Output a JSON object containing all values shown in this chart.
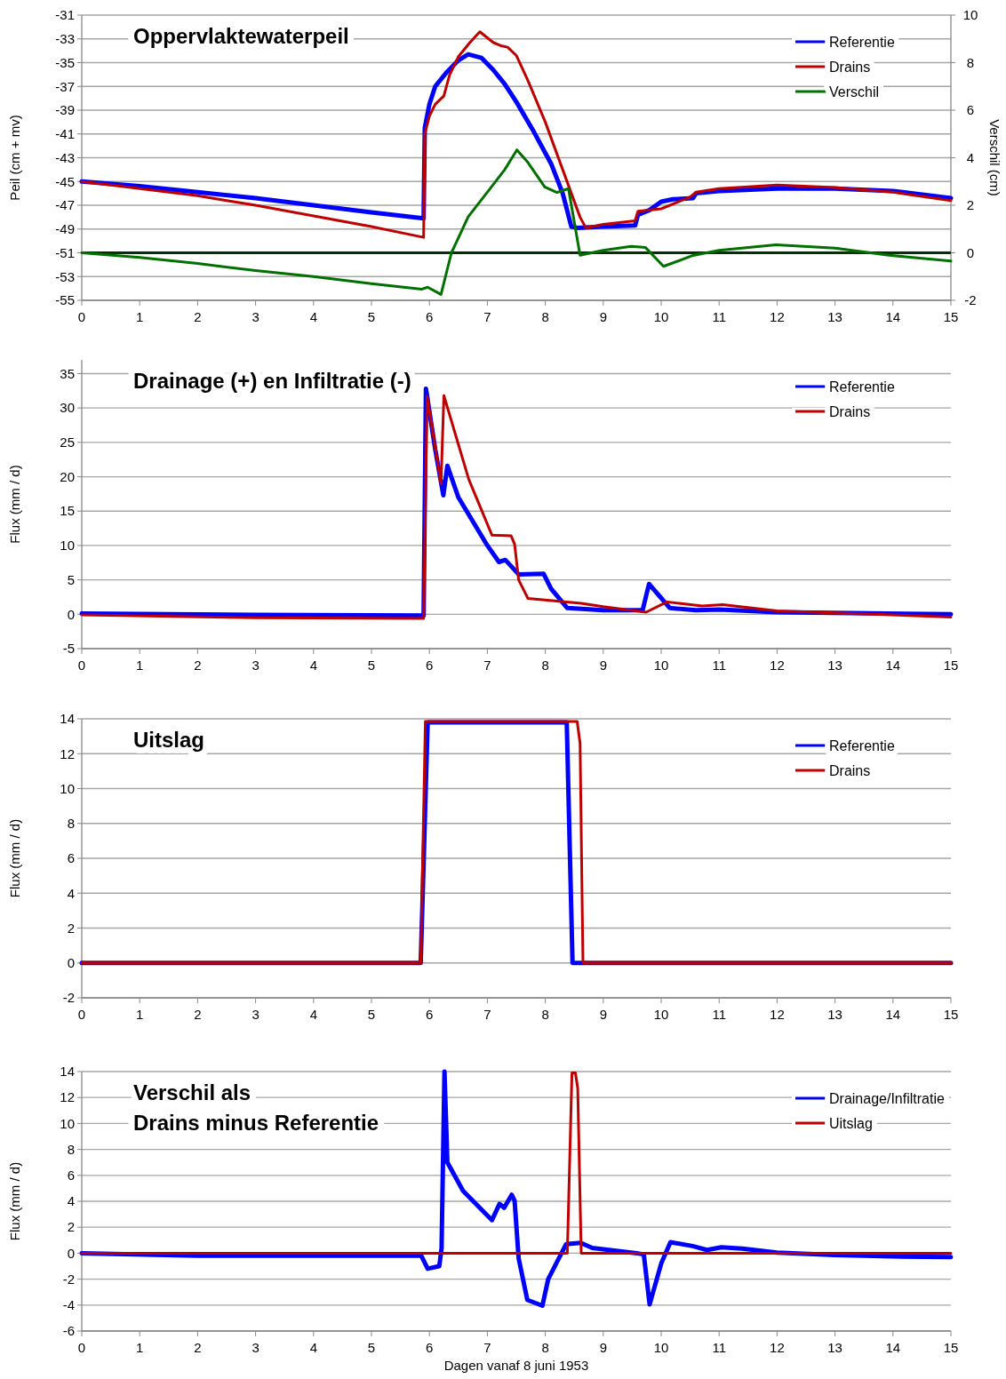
{
  "chart_data": [
    {
      "type": "line",
      "title": "Oppervlaktewaterpeil",
      "ylabel": "Peil (cm + mv)",
      "y2label": "Verschil (cm)",
      "xlim": [
        0,
        15
      ],
      "xticks": [
        0,
        1,
        2,
        3,
        4,
        5,
        6,
        7,
        8,
        9,
        10,
        11,
        12,
        13,
        14,
        15
      ],
      "ylim": [
        -55,
        -31
      ],
      "yticks": [
        -55,
        -53,
        -51,
        -49,
        -47,
        -45,
        -43,
        -41,
        -39,
        -37,
        -35,
        -33,
        -31
      ],
      "y2lim": [
        -2,
        10
      ],
      "y2ticks": [
        -2,
        0,
        2,
        4,
        6,
        8,
        10
      ],
      "grid": "y",
      "legend": "top right",
      "ref_lines": [
        {
          "axis": "y2",
          "value": 0,
          "color": "#003300"
        }
      ],
      "series": [
        {
          "name": "Referentie",
          "color": "#0000ff",
          "x": [
            0,
            1,
            2,
            3,
            4,
            5,
            5.9,
            5.92,
            6,
            6.1,
            6.3,
            6.5,
            6.67,
            6.9,
            7.1,
            7.3,
            7.5,
            7.8,
            8.1,
            8.3,
            8.45,
            8.55,
            9,
            9.55,
            9.6,
            9.8,
            10,
            10.2,
            10.55,
            10.6,
            11,
            12,
            13,
            14,
            15
          ],
          "values": [
            -45,
            -45.4,
            -45.9,
            -46.4,
            -47,
            -47.6,
            -48.1,
            -40.5,
            -38.5,
            -37,
            -35.8,
            -34.8,
            -34.3,
            -34.6,
            -35.6,
            -36.8,
            -38.3,
            -40.8,
            -43.5,
            -46,
            -48.8,
            -48.9,
            -48.8,
            -48.7,
            -47.8,
            -47.4,
            -46.7,
            -46.5,
            -46.4,
            -46,
            -45.8,
            -45.6,
            -45.6,
            -45.8,
            -46.4
          ]
        },
        {
          "name": "Drains",
          "color": "#c00000",
          "x": [
            0,
            1,
            2,
            2.5,
            3,
            4,
            5,
            5.9,
            5.92,
            6,
            6.1,
            6.25,
            6.35,
            6.5,
            6.7,
            6.87,
            7.1,
            7.25,
            7.35,
            7.5,
            7.7,
            8,
            8.3,
            8.6,
            8.7,
            9,
            9.55,
            9.6,
            10,
            10.5,
            10.6,
            11,
            12,
            13,
            14,
            15
          ],
          "values": [
            -45,
            -45.6,
            -46.2,
            -46.6,
            -47,
            -47.9,
            -48.8,
            -49.7,
            -41,
            -39.5,
            -38.5,
            -37.8,
            -36,
            -34.5,
            -33.3,
            -32.4,
            -33.3,
            -33.6,
            -33.7,
            -34.4,
            -36.5,
            -40,
            -44,
            -48,
            -48.9,
            -48.6,
            -48.3,
            -47.5,
            -47.3,
            -46.3,
            -45.9,
            -45.6,
            -45.3,
            -45.5,
            -45.9,
            -46.6
          ]
        },
        {
          "name": "Verschil",
          "color": "#007000",
          "axis": "y2",
          "x": [
            0,
            1,
            2,
            3,
            4,
            5,
            5.87,
            5.97,
            6.2,
            6.38,
            6.67,
            7.07,
            7.3,
            7.51,
            7.7,
            7.99,
            8.2,
            8.4,
            8.6,
            9,
            9.48,
            9.73,
            10.04,
            10.55,
            11,
            11.98,
            13,
            13.93,
            15
          ],
          "values": [
            0,
            -0.2,
            -0.45,
            -0.75,
            -1,
            -1.3,
            -1.53,
            -1.45,
            -1.75,
            0,
            1.52,
            2.77,
            3.5,
            4.33,
            3.8,
            2.77,
            2.54,
            2.7,
            -0.1,
            0.1,
            0.27,
            0.22,
            -0.57,
            -0.11,
            0.1,
            0.34,
            0.2,
            -0.1,
            -0.35
          ]
        }
      ]
    },
    {
      "type": "line",
      "title": "Drainage (+) en Infiltratie (-)",
      "ylabel": "Flux (mm / d)",
      "xlim": [
        0,
        15
      ],
      "xticks": [
        0,
        1,
        2,
        3,
        4,
        5,
        6,
        7,
        8,
        9,
        10,
        11,
        12,
        13,
        14,
        15
      ],
      "ylim": [
        -5,
        37
      ],
      "yticks": [
        -5,
        0,
        5,
        10,
        15,
        20,
        25,
        30,
        35
      ],
      "grid": "y",
      "legend": "top right",
      "series": [
        {
          "name": "Referentie",
          "color": "#0000ff",
          "x": [
            0,
            3,
            5.9,
            5.94,
            6.1,
            6.24,
            6.31,
            6.5,
            7,
            7.2,
            7.31,
            7.54,
            7.97,
            8.1,
            8.38,
            9,
            9.68,
            9.79,
            10.15,
            10.6,
            11,
            12,
            15
          ],
          "values": [
            0.1,
            -0.1,
            -0.2,
            32.8,
            24,
            17.3,
            21.6,
            17,
            10,
            7.6,
            7.9,
            5.8,
            5.9,
            3.7,
            0.9,
            0.6,
            0.6,
            4.4,
            0.9,
            0.6,
            0.7,
            0.3,
            0
          ]
        },
        {
          "name": "Drains",
          "color": "#c00000",
          "x": [
            0,
            3,
            5.9,
            5.96,
            6.2,
            6.25,
            6.68,
            7.08,
            7.41,
            7.47,
            7.54,
            7.7,
            8.62,
            9,
            9.74,
            10.1,
            10.71,
            11.06,
            12,
            15
          ],
          "values": [
            -0.1,
            -0.5,
            -0.6,
            31.7,
            19,
            31.8,
            19.6,
            11.5,
            11.4,
            10.2,
            5,
            2.3,
            1.6,
            1.1,
            0.3,
            1.8,
            1.2,
            1.4,
            0.5,
            -0.4
          ]
        }
      ]
    },
    {
      "type": "line",
      "title": "Uitslag",
      "ylabel": "Flux (mm / d)",
      "xlim": [
        0,
        15
      ],
      "xticks": [
        0,
        1,
        2,
        3,
        4,
        5,
        6,
        7,
        8,
        9,
        10,
        11,
        12,
        13,
        14,
        15
      ],
      "ylim": [
        -2,
        14
      ],
      "yticks": [
        -2,
        0,
        2,
        4,
        6,
        8,
        10,
        12,
        14
      ],
      "grid": "y",
      "legend": "top right",
      "series": [
        {
          "name": "Referentie",
          "color": "#0000ff",
          "x": [
            0,
            5.85,
            5.97,
            8.37,
            8.47,
            15
          ],
          "values": [
            0,
            0,
            13.8,
            13.8,
            0,
            0
          ]
        },
        {
          "name": "Drains",
          "color": "#c00000",
          "x": [
            0,
            5.85,
            5.93,
            8.55,
            8.6,
            8.65,
            15
          ],
          "values": [
            0,
            0,
            13.85,
            13.85,
            12.6,
            0,
            0
          ]
        }
      ]
    },
    {
      "type": "line",
      "title": "Verschil als\nDrains minus Referentie",
      "ylabel": "Flux (mm / d)",
      "xlabel": "Dagen vanaf 8 juni 1953",
      "xlim": [
        0,
        15
      ],
      "xticks": [
        0,
        1,
        2,
        3,
        4,
        5,
        6,
        7,
        8,
        9,
        10,
        11,
        12,
        13,
        14,
        15
      ],
      "ylim": [
        -6,
        14
      ],
      "yticks": [
        -6,
        -4,
        -2,
        0,
        2,
        4,
        6,
        8,
        10,
        12,
        14
      ],
      "grid": "y",
      "legend": "top right",
      "series": [
        {
          "name": "Drainage/Infiltratie",
          "color": "#0000ff",
          "x": [
            0,
            2,
            5.86,
            5.97,
            6.17,
            6.21,
            6.26,
            6.31,
            6.58,
            7.08,
            7.21,
            7.29,
            7.42,
            7.47,
            7.54,
            7.69,
            7.95,
            8.05,
            8.36,
            8.61,
            8.81,
            9.58,
            9.7,
            9.8,
            10,
            10.16,
            10.54,
            10.79,
            11.04,
            11.4,
            12,
            13,
            14,
            15
          ],
          "values": [
            0,
            -0.2,
            -0.2,
            -1.2,
            -1,
            0.4,
            14,
            7,
            4.8,
            2.55,
            3.8,
            3.5,
            4.5,
            4.05,
            -0.4,
            -3.6,
            -4.05,
            -2,
            0.7,
            0.8,
            0.4,
            0,
            -0.1,
            -3.95,
            -0.8,
            0.85,
            0.55,
            0.25,
            0.45,
            0.35,
            0.05,
            -0.15,
            -0.25,
            -0.3
          ]
        },
        {
          "name": "Uitslag",
          "color": "#c00000",
          "x": [
            0,
            8.38,
            8.46,
            8.52,
            8.56,
            8.62,
            15
          ],
          "values": [
            0,
            0,
            13.9,
            13.9,
            12.7,
            0,
            0
          ]
        }
      ]
    }
  ]
}
